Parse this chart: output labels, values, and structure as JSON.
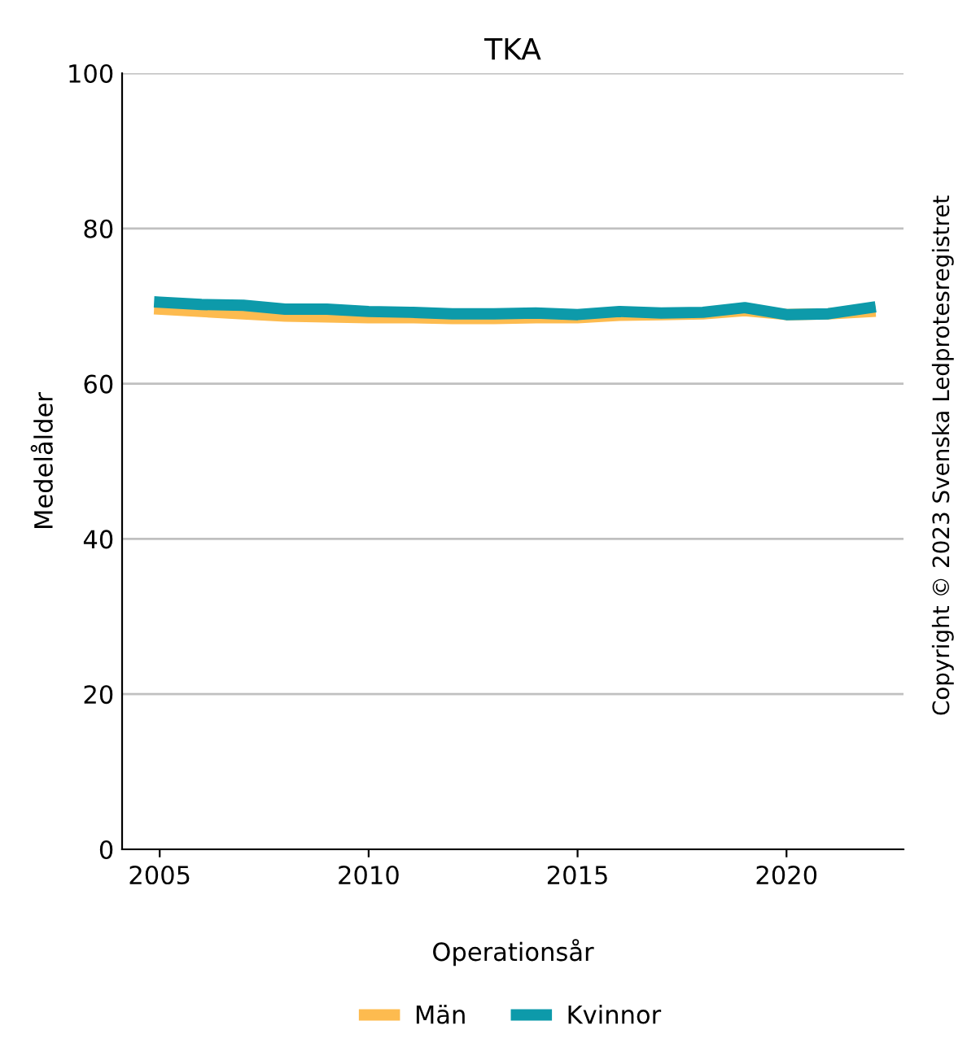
{
  "chart_data": {
    "type": "line",
    "title": "TKA",
    "xlabel": "Operationsår",
    "ylabel": "Medelålder",
    "x": [
      2005,
      2006,
      2007,
      2008,
      2009,
      2010,
      2011,
      2012,
      2013,
      2014,
      2015,
      2016,
      2017,
      2018,
      2019,
      2020,
      2021,
      2022
    ],
    "series": [
      {
        "name": "Män",
        "color": "#fdbb4f",
        "values": [
          69.6,
          69.3,
          69.0,
          68.7,
          68.6,
          68.5,
          68.5,
          68.4,
          68.4,
          68.5,
          68.5,
          68.8,
          68.9,
          69.0,
          69.4,
          68.9,
          69.0,
          69.3
        ]
      },
      {
        "name": "Kvinnor",
        "color": "#0d9aaa",
        "values": [
          70.5,
          70.2,
          70.1,
          69.6,
          69.6,
          69.3,
          69.2,
          69.0,
          69.0,
          69.1,
          68.9,
          69.3,
          69.1,
          69.2,
          69.8,
          68.9,
          69.0,
          69.8
        ]
      }
    ],
    "xlim": [
      2004.1,
      2022.8
    ],
    "xticks": [
      2005,
      2010,
      2015,
      2020
    ],
    "ylim": [
      0,
      100
    ],
    "yticks": [
      0,
      20,
      40,
      60,
      80,
      100
    ],
    "grid": "y",
    "legend": "bottom",
    "marker": "none",
    "line_style": "solid",
    "annotations": [
      "Copyright © 2023 Svenska Ledprotesregistret"
    ]
  }
}
